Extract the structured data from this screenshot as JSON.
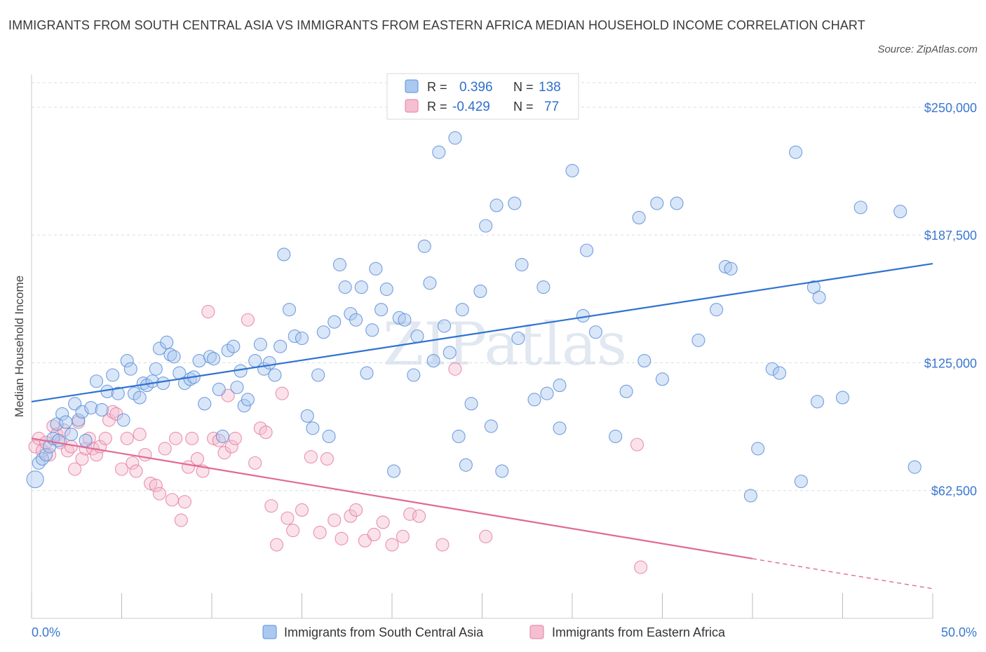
{
  "title": "IMMIGRANTS FROM SOUTH CENTRAL ASIA VS IMMIGRANTS FROM EASTERN AFRICA MEDIAN HOUSEHOLD INCOME CORRELATION CHART",
  "source": "Source: ZipAtlas.com",
  "watermark": "ZIPatlas",
  "colors": {
    "blue": "#5b8fd9",
    "blue_fill": "#aac8f0",
    "blue_line": "#2f72d0",
    "pink": "#e67fa1",
    "pink_fill": "#f5bfd1",
    "pink_line": "#e06a95",
    "axis_text": "#3b78d0",
    "grid": "#d9dde3"
  },
  "legend": {
    "rows": [
      {
        "r_label": "R =",
        "r_value": "0.396",
        "n_label": "N =",
        "n_value": "138"
      },
      {
        "r_label": "R =",
        "r_value": "-0.429",
        "n_label": "N =",
        "n_value": "77"
      }
    ]
  },
  "chart_data": {
    "type": "scatter",
    "xlabel": "",
    "ylabel": "Median Household Income",
    "xlim": [
      0,
      50
    ],
    "ylim": [
      0,
      262000
    ],
    "x_tick_labels": [
      "0.0%",
      "50.0%"
    ],
    "y_ticks": [
      62500,
      125000,
      187500,
      250000
    ],
    "y_tick_labels": [
      "$62,500",
      "$125,000",
      "$187,500",
      "$250,000"
    ],
    "series": [
      {
        "name": "Immigrants from South Central Asia",
        "color": "blue",
        "R": 0.396,
        "N": 138,
        "trend": {
          "x": [
            0,
            50
          ],
          "y": [
            106000,
            173500
          ],
          "dashed_from": null
        },
        "points": [
          [
            0.2,
            68000
          ],
          [
            0.4,
            76000
          ],
          [
            0.6,
            78000
          ],
          [
            0.8,
            80000
          ],
          [
            1.0,
            84000
          ],
          [
            1.2,
            88000
          ],
          [
            1.4,
            95000
          ],
          [
            1.5,
            87000
          ],
          [
            1.7,
            100000
          ],
          [
            1.9,
            96000
          ],
          [
            2.2,
            90000
          ],
          [
            2.4,
            105000
          ],
          [
            2.6,
            97000
          ],
          [
            2.8,
            101000
          ],
          [
            3.0,
            87000
          ],
          [
            3.3,
            103000
          ],
          [
            3.6,
            116000
          ],
          [
            3.9,
            102000
          ],
          [
            4.2,
            111000
          ],
          [
            4.5,
            119000
          ],
          [
            4.8,
            110000
          ],
          [
            5.1,
            97000
          ],
          [
            5.3,
            126000
          ],
          [
            5.5,
            122000
          ],
          [
            5.7,
            110000
          ],
          [
            6.0,
            108000
          ],
          [
            6.2,
            115000
          ],
          [
            6.4,
            114000
          ],
          [
            6.7,
            116000
          ],
          [
            6.9,
            122000
          ],
          [
            7.1,
            132000
          ],
          [
            7.3,
            115000
          ],
          [
            7.5,
            135000
          ],
          [
            7.7,
            129000
          ],
          [
            7.9,
            128000
          ],
          [
            8.2,
            120000
          ],
          [
            8.5,
            115000
          ],
          [
            8.8,
            117000
          ],
          [
            9.0,
            118000
          ],
          [
            9.3,
            126000
          ],
          [
            9.6,
            105000
          ],
          [
            9.9,
            128000
          ],
          [
            10.1,
            127000
          ],
          [
            10.4,
            112000
          ],
          [
            10.6,
            89000
          ],
          [
            10.9,
            131000
          ],
          [
            11.2,
            133000
          ],
          [
            11.4,
            113000
          ],
          [
            11.6,
            121000
          ],
          [
            11.8,
            104000
          ],
          [
            12.0,
            107000
          ],
          [
            12.4,
            126000
          ],
          [
            12.7,
            134000
          ],
          [
            12.9,
            122000
          ],
          [
            13.2,
            125000
          ],
          [
            13.5,
            119000
          ],
          [
            13.8,
            133000
          ],
          [
            14.0,
            178000
          ],
          [
            14.3,
            151000
          ],
          [
            14.6,
            138000
          ],
          [
            15.0,
            137000
          ],
          [
            15.3,
            99000
          ],
          [
            15.6,
            93000
          ],
          [
            15.9,
            119000
          ],
          [
            16.2,
            140000
          ],
          [
            16.5,
            89000
          ],
          [
            16.8,
            145000
          ],
          [
            17.1,
            173000
          ],
          [
            17.4,
            162000
          ],
          [
            17.7,
            149000
          ],
          [
            18.0,
            146000
          ],
          [
            18.3,
            162000
          ],
          [
            18.6,
            120000
          ],
          [
            18.9,
            141000
          ],
          [
            19.1,
            171000
          ],
          [
            19.4,
            151000
          ],
          [
            19.7,
            161000
          ],
          [
            20.1,
            72000
          ],
          [
            20.4,
            147000
          ],
          [
            20.7,
            146000
          ],
          [
            21.2,
            119000
          ],
          [
            21.4,
            138000
          ],
          [
            21.8,
            182000
          ],
          [
            22.1,
            164000
          ],
          [
            22.3,
            126000
          ],
          [
            22.6,
            228000
          ],
          [
            22.9,
            143000
          ],
          [
            23.2,
            130000
          ],
          [
            23.7,
            89000
          ],
          [
            23.9,
            151000
          ],
          [
            24.1,
            75000
          ],
          [
            24.4,
            105000
          ],
          [
            24.9,
            160000
          ],
          [
            25.2,
            192000
          ],
          [
            25.5,
            94000
          ],
          [
            25.8,
            202000
          ],
          [
            26.1,
            72000
          ],
          [
            27.2,
            173000
          ],
          [
            27.0,
            137000
          ],
          [
            26.8,
            203000
          ],
          [
            27.9,
            107000
          ],
          [
            28.6,
            110000
          ],
          [
            28.4,
            162000
          ],
          [
            29.3,
            114000
          ],
          [
            29.3,
            93000
          ],
          [
            30.0,
            219000
          ],
          [
            30.6,
            148000
          ],
          [
            30.8,
            180000
          ],
          [
            31.3,
            140000
          ],
          [
            32.4,
            89000
          ],
          [
            33.0,
            111000
          ],
          [
            33.7,
            196000
          ],
          [
            34.0,
            126000
          ],
          [
            34.7,
            203000
          ],
          [
            35.0,
            117000
          ],
          [
            35.8,
            203000
          ],
          [
            37.0,
            136000
          ],
          [
            38.0,
            151000
          ],
          [
            38.5,
            172000
          ],
          [
            38.8,
            171000
          ],
          [
            39.9,
            60000
          ],
          [
            40.3,
            83000
          ],
          [
            41.1,
            122000
          ],
          [
            41.5,
            120000
          ],
          [
            42.4,
            228000
          ],
          [
            42.7,
            67000
          ],
          [
            43.4,
            162000
          ],
          [
            43.6,
            106000
          ],
          [
            43.7,
            157000
          ],
          [
            45.0,
            108000
          ],
          [
            46.0,
            201000
          ],
          [
            48.2,
            199000
          ],
          [
            49.0,
            74000
          ],
          [
            23.5,
            235000
          ]
        ]
      },
      {
        "name": "Immigrants from Eastern Africa",
        "color": "pink",
        "R": -0.429,
        "N": 77,
        "trend": {
          "x": [
            0,
            50
          ],
          "y": [
            88000,
            14500
          ],
          "dashed_from": 40
        },
        "points": [
          [
            0.2,
            84000
          ],
          [
            0.4,
            88000
          ],
          [
            0.6,
            82000
          ],
          [
            0.8,
            86000
          ],
          [
            1.0,
            80000
          ],
          [
            1.2,
            94000
          ],
          [
            1.4,
            90000
          ],
          [
            1.6,
            86000
          ],
          [
            1.8,
            92000
          ],
          [
            2.0,
            82000
          ],
          [
            2.2,
            84000
          ],
          [
            2.4,
            73000
          ],
          [
            2.6,
            96000
          ],
          [
            2.8,
            78000
          ],
          [
            3.0,
            83000
          ],
          [
            3.2,
            88000
          ],
          [
            3.4,
            83000
          ],
          [
            3.6,
            80000
          ],
          [
            3.8,
            84000
          ],
          [
            4.1,
            88000
          ],
          [
            4.3,
            97000
          ],
          [
            4.5,
            101000
          ],
          [
            4.7,
            100000
          ],
          [
            5.0,
            73000
          ],
          [
            5.3,
            88000
          ],
          [
            5.6,
            76000
          ],
          [
            5.8,
            72000
          ],
          [
            6.0,
            90000
          ],
          [
            6.3,
            80000
          ],
          [
            6.6,
            66000
          ],
          [
            6.9,
            65000
          ],
          [
            7.1,
            61000
          ],
          [
            7.4,
            83000
          ],
          [
            7.8,
            58000
          ],
          [
            8.0,
            88000
          ],
          [
            8.3,
            48000
          ],
          [
            8.5,
            57000
          ],
          [
            8.7,
            74000
          ],
          [
            8.9,
            88000
          ],
          [
            9.2,
            78000
          ],
          [
            9.5,
            72000
          ],
          [
            9.8,
            150000
          ],
          [
            10.1,
            88000
          ],
          [
            10.4,
            87000
          ],
          [
            10.7,
            81000
          ],
          [
            10.9,
            109000
          ],
          [
            11.1,
            84000
          ],
          [
            11.3,
            88000
          ],
          [
            12.0,
            146000
          ],
          [
            12.4,
            76000
          ],
          [
            12.7,
            93000
          ],
          [
            13.0,
            91000
          ],
          [
            13.3,
            55000
          ],
          [
            13.6,
            36000
          ],
          [
            13.9,
            110000
          ],
          [
            14.2,
            49000
          ],
          [
            14.5,
            43000
          ],
          [
            15.0,
            53000
          ],
          [
            15.5,
            79000
          ],
          [
            16.0,
            42000
          ],
          [
            16.4,
            78000
          ],
          [
            16.8,
            48000
          ],
          [
            17.2,
            39000
          ],
          [
            17.7,
            50000
          ],
          [
            18.0,
            53000
          ],
          [
            18.5,
            38000
          ],
          [
            19.0,
            41000
          ],
          [
            19.5,
            47000
          ],
          [
            20.0,
            36000
          ],
          [
            20.6,
            40000
          ],
          [
            21.0,
            51000
          ],
          [
            21.5,
            50000
          ],
          [
            22.8,
            36000
          ],
          [
            23.5,
            122000
          ],
          [
            25.2,
            40000
          ],
          [
            33.6,
            85000
          ],
          [
            33.8,
            25000
          ]
        ]
      }
    ]
  },
  "bottom_legend": {
    "items": [
      "Immigrants from South Central Asia",
      "Immigrants from Eastern Africa"
    ]
  }
}
